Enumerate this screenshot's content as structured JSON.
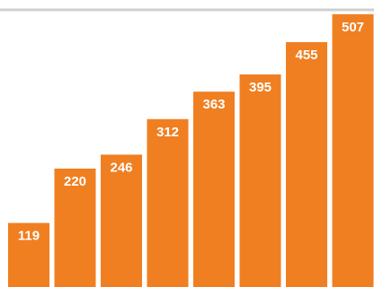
{
  "chart_data": {
    "type": "bar",
    "categories": [
      "",
      "",
      "",
      "",
      "",
      "",
      "",
      ""
    ],
    "values": [
      119,
      220,
      246,
      312,
      363,
      395,
      455,
      507
    ],
    "title": "",
    "xlabel": "",
    "ylabel": "",
    "ylim": [
      0,
      535
    ],
    "grid": false,
    "legend": "none",
    "data_labels": true
  },
  "colors": {
    "bar": "#F07F22",
    "label": "#FFFFFF",
    "top_rule": "#CFCFCF",
    "background": "#FFFFFF"
  }
}
